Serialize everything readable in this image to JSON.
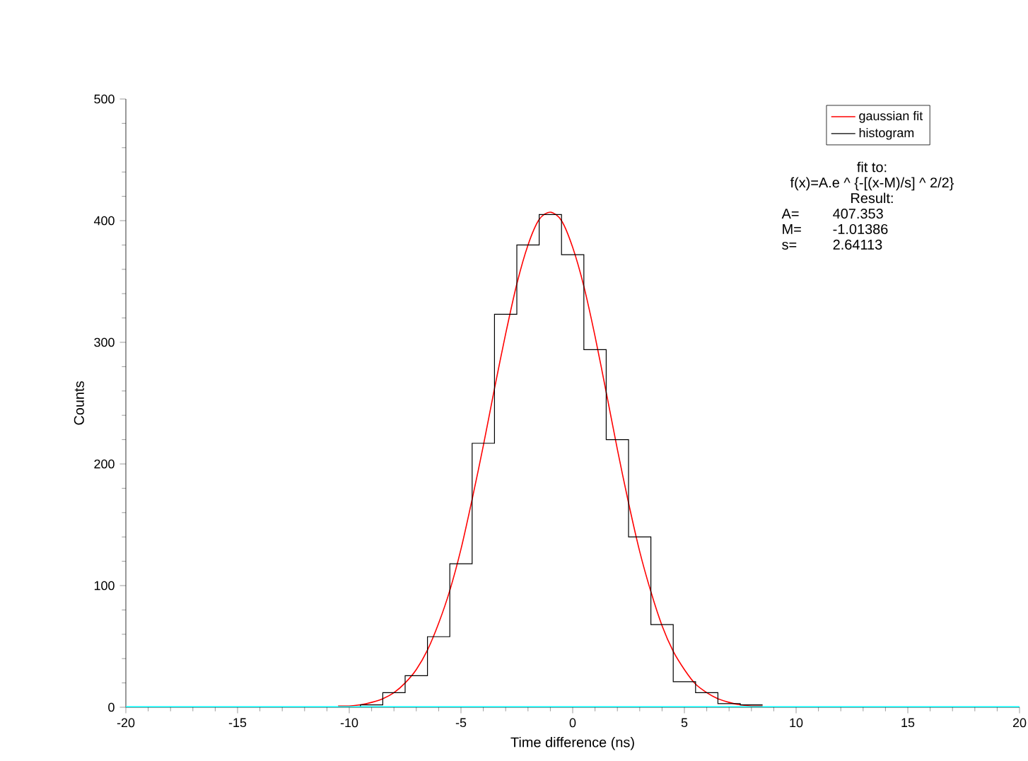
{
  "chart_data": {
    "type": "histogram",
    "xlabel": "Time difference (ns)",
    "ylabel": "Counts",
    "xlim": [
      -20,
      20
    ],
    "ylim": [
      0,
      500
    ],
    "xticks": [
      -20,
      -15,
      -10,
      -5,
      0,
      5,
      10,
      15,
      20
    ],
    "yticks": [
      0,
      100,
      200,
      300,
      400,
      500
    ],
    "legend": "top right",
    "grid": false,
    "annotations": [
      "fit to:",
      "f(x)=A.e ^ {-[(x-M)/s] ^ 2/2}",
      "Result:",
      "A=",
      "407.353",
      "M=",
      "-1.01386",
      "s=",
      "2.64113"
    ],
    "ref_lines": [
      {
        "axis": "y",
        "value": 0,
        "color": "#00ffff"
      }
    ],
    "series": [
      {
        "name": "gaussian fit",
        "type": "line",
        "color": "#ff0000",
        "x": [
          -10.5,
          -10,
          -9.5,
          -9,
          -8.5,
          -8,
          -7.5,
          -7,
          -6.5,
          -6,
          -5.5,
          -5,
          -4.5,
          -4,
          -3.5,
          -3,
          -2.5,
          -2,
          -1.5,
          -1,
          -0.5,
          0,
          0.5,
          1,
          1.5,
          2,
          2.5,
          3,
          3.5,
          4,
          4.5,
          5,
          5.5,
          6,
          6.5,
          7,
          7.5,
          8,
          8.5
        ],
        "values": [
          1,
          1,
          2,
          4,
          7,
          12,
          20,
          31,
          47,
          69,
          96,
          130,
          171,
          215,
          262,
          307,
          348,
          380,
          401,
          407,
          400,
          378,
          346,
          305,
          259,
          212,
          168,
          128,
          95,
          67,
          46,
          31,
          19,
          12,
          7,
          4,
          2,
          1,
          1
        ]
      },
      {
        "name": "histogram",
        "color": "#000000",
        "bins": [
          -10.5,
          -9.5,
          -8.5,
          -7.5,
          -6.5,
          -5.5,
          -4.5,
          -3.5,
          -2.5,
          -1.5,
          -0.5,
          0.5,
          1.5,
          2.5,
          3.5,
          4.5,
          5.5,
          6.5,
          7.5,
          8.5
        ],
        "values": [
          0,
          2,
          12,
          26,
          58,
          118,
          217,
          323,
          380,
          405,
          372,
          294,
          220,
          140,
          68,
          21,
          12,
          3,
          2
        ]
      }
    ]
  }
}
